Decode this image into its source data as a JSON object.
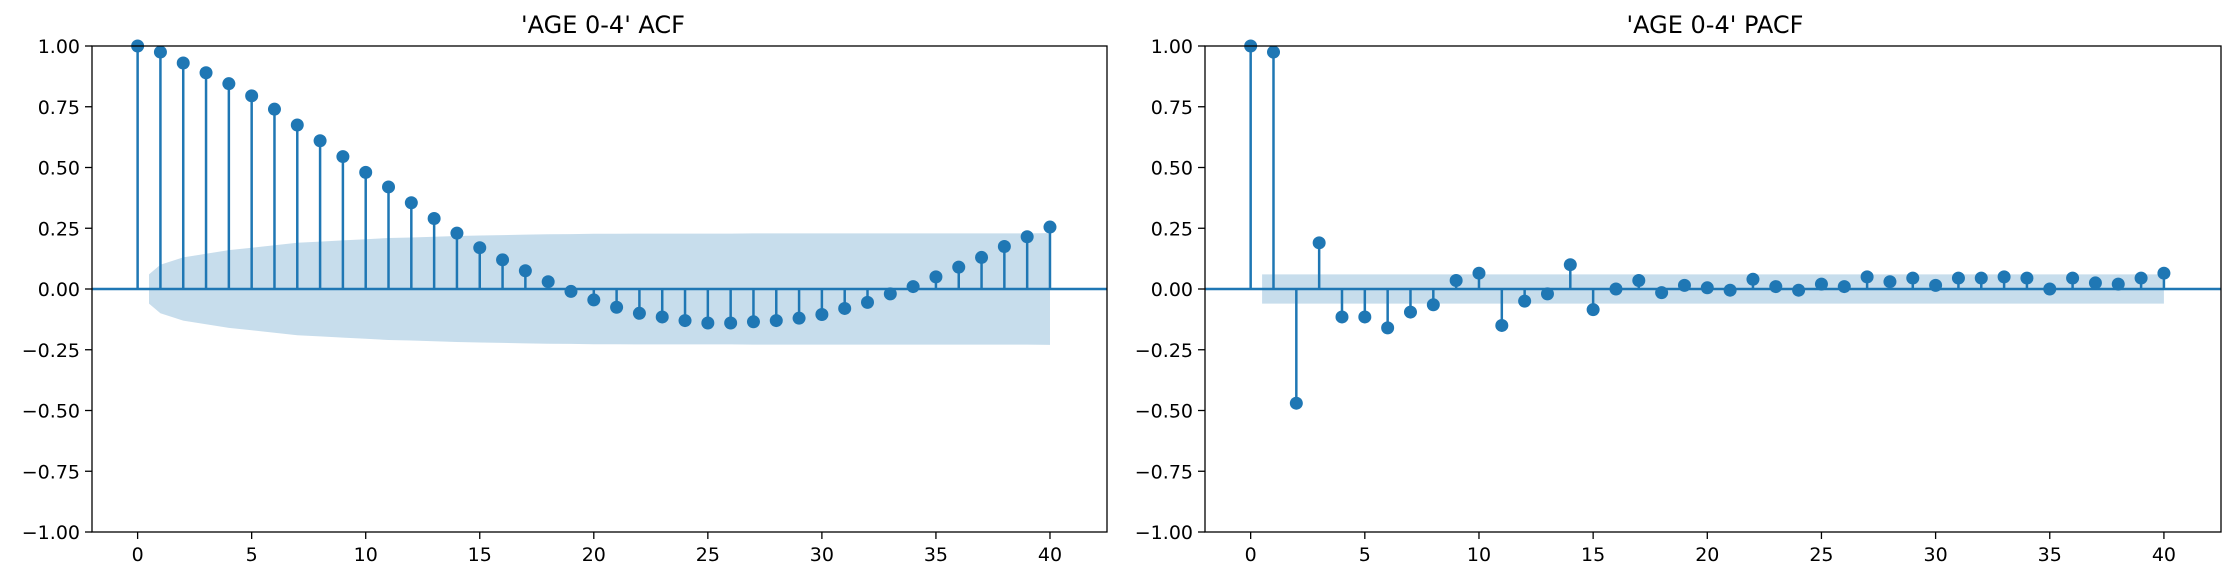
{
  "colors": {
    "stem": "#1f77b4",
    "confint": "#1f77b4",
    "axis": "#000000",
    "background": "#ffffff"
  },
  "chart_data": [
    {
      "type": "stem",
      "title": "'AGE 0-4' ACF",
      "xlabel": "",
      "ylabel": "",
      "xlim": [
        -2,
        42.5
      ],
      "ylim": [
        -1.0,
        1.0
      ],
      "xticks": [
        0,
        5,
        10,
        15,
        20,
        25,
        30,
        35,
        40
      ],
      "xtick_labels": [
        "0",
        "5",
        "10",
        "15",
        "20",
        "25",
        "30",
        "35",
        "40"
      ],
      "yticks": [
        -1.0,
        -0.75,
        -0.5,
        -0.25,
        0.0,
        0.25,
        0.5,
        0.75,
        1.0
      ],
      "ytick_labels": [
        "−1.00",
        "−0.75",
        "−0.50",
        "−0.25",
        "0.00",
        "0.25",
        "0.50",
        "0.75",
        "1.00"
      ],
      "grid": false,
      "lags": [
        0,
        1,
        2,
        3,
        4,
        5,
        6,
        7,
        8,
        9,
        10,
        11,
        12,
        13,
        14,
        15,
        16,
        17,
        18,
        19,
        20,
        21,
        22,
        23,
        24,
        25,
        26,
        27,
        28,
        29,
        30,
        31,
        32,
        33,
        34,
        35,
        36,
        37,
        38,
        39,
        40
      ],
      "values": [
        1.0,
        0.975,
        0.93,
        0.89,
        0.845,
        0.795,
        0.74,
        0.675,
        0.61,
        0.545,
        0.48,
        0.42,
        0.355,
        0.29,
        0.23,
        0.17,
        0.12,
        0.075,
        0.03,
        -0.01,
        -0.045,
        -0.075,
        -0.1,
        -0.115,
        -0.13,
        -0.14,
        -0.14,
        -0.135,
        -0.13,
        -0.12,
        -0.105,
        -0.08,
        -0.055,
        -0.02,
        0.01,
        0.05,
        0.09,
        0.13,
        0.175,
        0.215,
        0.255
      ],
      "confint_upper": [
        0.06,
        0.1,
        0.13,
        0.145,
        0.16,
        0.17,
        0.18,
        0.19,
        0.195,
        0.2,
        0.205,
        0.21,
        0.212,
        0.215,
        0.218,
        0.22,
        0.222,
        0.224,
        0.225,
        0.226,
        0.227,
        0.227,
        0.228,
        0.228,
        0.228,
        0.228,
        0.228,
        0.229,
        0.229,
        0.229,
        0.229,
        0.229,
        0.229,
        0.229,
        0.229,
        0.229,
        0.229,
        0.229,
        0.229,
        0.229,
        0.23
      ]
    },
    {
      "type": "stem",
      "title": "'AGE 0-4' PACF",
      "xlabel": "",
      "ylabel": "",
      "xlim": [
        -2,
        42.5
      ],
      "ylim": [
        -1.0,
        1.0
      ],
      "xticks": [
        0,
        5,
        10,
        15,
        20,
        25,
        30,
        35,
        40
      ],
      "xtick_labels": [
        "0",
        "5",
        "10",
        "15",
        "20",
        "25",
        "30",
        "35",
        "40"
      ],
      "yticks": [
        -1.0,
        -0.75,
        -0.5,
        -0.25,
        0.0,
        0.25,
        0.5,
        0.75,
        1.0
      ],
      "ytick_labels": [
        "−1.00",
        "−0.75",
        "−0.50",
        "−0.25",
        "0.00",
        "0.25",
        "0.50",
        "0.75",
        "1.00"
      ],
      "grid": false,
      "lags": [
        0,
        1,
        2,
        3,
        4,
        5,
        6,
        7,
        8,
        9,
        10,
        11,
        12,
        13,
        14,
        15,
        16,
        17,
        18,
        19,
        20,
        21,
        22,
        23,
        24,
        25,
        26,
        27,
        28,
        29,
        30,
        31,
        32,
        33,
        34,
        35,
        36,
        37,
        38,
        39,
        40
      ],
      "values": [
        1.0,
        0.975,
        -0.47,
        0.19,
        -0.115,
        -0.115,
        -0.16,
        -0.095,
        -0.065,
        0.035,
        0.065,
        -0.15,
        -0.05,
        -0.02,
        0.1,
        -0.085,
        0.0,
        0.035,
        -0.015,
        0.015,
        0.005,
        -0.005,
        0.04,
        0.01,
        -0.005,
        0.02,
        0.01,
        0.05,
        0.03,
        0.045,
        0.015,
        0.045,
        0.045,
        0.05,
        0.045,
        0.0,
        0.045,
        0.025,
        0.02,
        0.045,
        0.065
      ],
      "confint_upper": [
        0.06,
        0.06,
        0.06,
        0.06,
        0.06,
        0.06,
        0.06,
        0.06,
        0.06,
        0.06,
        0.06,
        0.06,
        0.06,
        0.06,
        0.06,
        0.06,
        0.06,
        0.06,
        0.06,
        0.06,
        0.06,
        0.06,
        0.06,
        0.06,
        0.06,
        0.06,
        0.06,
        0.06,
        0.06,
        0.06,
        0.06,
        0.06,
        0.06,
        0.06,
        0.06,
        0.06,
        0.06,
        0.06,
        0.06,
        0.06,
        0.06
      ]
    }
  ]
}
